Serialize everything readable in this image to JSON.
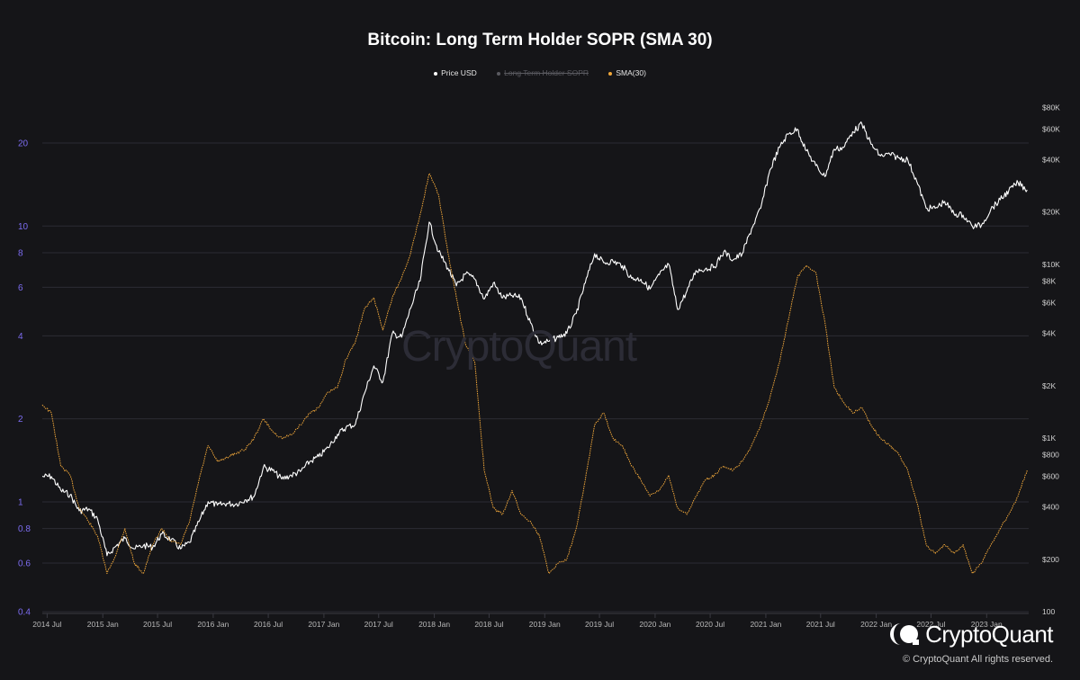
{
  "chart_data": {
    "type": "line",
    "title": "Bitcoin: Long Term Holder SOPR (SMA 30)",
    "legend": [
      {
        "label": "Price USD",
        "color": "#ffffff",
        "visible": true
      },
      {
        "label": "Long Term Holder SOPR",
        "color": "#666666",
        "visible": false
      },
      {
        "label": "SMA(30)",
        "color": "#f0a73a",
        "visible": true
      }
    ],
    "x_axis": {
      "range": [
        "2014-06-15",
        "2023-05-20"
      ],
      "ticks": [
        "2014 Jul",
        "2015 Jan",
        "2015 Jul",
        "2016 Jan",
        "2016 Jul",
        "2017 Jan",
        "2017 Jul",
        "2018 Jan",
        "2018 Jul",
        "2019 Jan",
        "2019 Jul",
        "2020 Jan",
        "2020 Jul",
        "2021 Jan",
        "2021 Jul",
        "2022 Jan",
        "2022 Jul",
        "2023 Jan"
      ]
    },
    "y_left": {
      "scale": "log",
      "range": [
        0.4,
        30
      ],
      "ticks": [
        0.4,
        0.6,
        0.8,
        1,
        2,
        4,
        6,
        8,
        10,
        20
      ],
      "tick_labels": [
        "0.4",
        "0.6",
        "0.8",
        "1",
        "2",
        "4",
        "6",
        "8",
        "10",
        "20"
      ],
      "color": "#7c6cf0"
    },
    "y_right": {
      "scale": "log",
      "range": [
        100,
        95000
      ],
      "ticks": [
        100,
        200,
        400,
        600,
        800,
        1000,
        2000,
        4000,
        6000,
        8000,
        10000,
        20000,
        40000,
        60000,
        80000
      ],
      "tick_labels": [
        "100",
        "$200",
        "$400",
        "$600",
        "$800",
        "$1K",
        "$2K",
        "$4K",
        "$6K",
        "$8K",
        "$10K",
        "$20K",
        "$40K",
        "$60K",
        "$80K"
      ]
    },
    "series": [
      {
        "name": "Price USD",
        "axis": "right",
        "color": "#ffffff",
        "points": [
          [
            "2014-06-15",
            600
          ],
          [
            "2014-07-15",
            600
          ],
          [
            "2014-08-15",
            500
          ],
          [
            "2014-09-15",
            470
          ],
          [
            "2014-10-15",
            380
          ],
          [
            "2014-11-15",
            390
          ],
          [
            "2014-12-15",
            340
          ],
          [
            "2015-01-15",
            210
          ],
          [
            "2015-02-15",
            240
          ],
          [
            "2015-03-15",
            265
          ],
          [
            "2015-04-15",
            230
          ],
          [
            "2015-05-15",
            240
          ],
          [
            "2015-06-15",
            235
          ],
          [
            "2015-07-15",
            280
          ],
          [
            "2015-08-15",
            260
          ],
          [
            "2015-09-15",
            230
          ],
          [
            "2015-10-15",
            250
          ],
          [
            "2015-11-15",
            330
          ],
          [
            "2015-12-15",
            430
          ],
          [
            "2016-01-15",
            410
          ],
          [
            "2016-02-15",
            420
          ],
          [
            "2016-03-15",
            415
          ],
          [
            "2016-04-15",
            440
          ],
          [
            "2016-05-15",
            460
          ],
          [
            "2016-06-15",
            680
          ],
          [
            "2016-07-15",
            650
          ],
          [
            "2016-08-15",
            580
          ],
          [
            "2016-09-15",
            610
          ],
          [
            "2016-10-15",
            640
          ],
          [
            "2016-11-15",
            730
          ],
          [
            "2016-12-15",
            780
          ],
          [
            "2017-01-15",
            880
          ],
          [
            "2017-02-15",
            1050
          ],
          [
            "2017-03-15",
            1150
          ],
          [
            "2017-04-15",
            1200
          ],
          [
            "2017-05-15",
            1800
          ],
          [
            "2017-06-15",
            2600
          ],
          [
            "2017-07-15",
            2100
          ],
          [
            "2017-08-15",
            4000
          ],
          [
            "2017-09-15",
            3800
          ],
          [
            "2017-10-15",
            5600
          ],
          [
            "2017-11-15",
            8000
          ],
          [
            "2017-12-15",
            17500
          ],
          [
            "2018-01-15",
            11800
          ],
          [
            "2018-02-15",
            9500
          ],
          [
            "2018-03-15",
            7500
          ],
          [
            "2018-04-15",
            8800
          ],
          [
            "2018-05-15",
            8200
          ],
          [
            "2018-06-15",
            6300
          ],
          [
            "2018-07-15",
            7800
          ],
          [
            "2018-08-15",
            6400
          ],
          [
            "2018-09-15",
            6600
          ],
          [
            "2018-10-15",
            6400
          ],
          [
            "2018-11-15",
            4600
          ],
          [
            "2018-12-15",
            3500
          ],
          [
            "2019-01-15",
            3600
          ],
          [
            "2019-02-15",
            3800
          ],
          [
            "2019-03-15",
            4000
          ],
          [
            "2019-04-15",
            5200
          ],
          [
            "2019-05-15",
            7800
          ],
          [
            "2019-06-15",
            11500
          ],
          [
            "2019-07-15",
            10200
          ],
          [
            "2019-08-15",
            10400
          ],
          [
            "2019-09-15",
            9800
          ],
          [
            "2019-10-15",
            8300
          ],
          [
            "2019-11-15",
            8200
          ],
          [
            "2019-12-15",
            7200
          ],
          [
            "2020-01-15",
            8700
          ],
          [
            "2020-02-15",
            10000
          ],
          [
            "2020-03-15",
            5500
          ],
          [
            "2020-04-15",
            7000
          ],
          [
            "2020-05-15",
            9200
          ],
          [
            "2020-06-15",
            9400
          ],
          [
            "2020-07-15",
            9700
          ],
          [
            "2020-08-15",
            11800
          ],
          [
            "2020-09-15",
            10600
          ],
          [
            "2020-10-15",
            11500
          ],
          [
            "2020-11-15",
            16000
          ],
          [
            "2020-12-15",
            21000
          ],
          [
            "2021-01-15",
            35000
          ],
          [
            "2021-02-15",
            47000
          ],
          [
            "2021-03-15",
            56000
          ],
          [
            "2021-04-15",
            60000
          ],
          [
            "2021-05-15",
            45000
          ],
          [
            "2021-06-15",
            37000
          ],
          [
            "2021-07-15",
            32000
          ],
          [
            "2021-08-15",
            46000
          ],
          [
            "2021-09-15",
            47000
          ],
          [
            "2021-10-15",
            58000
          ],
          [
            "2021-11-15",
            64000
          ],
          [
            "2021-12-15",
            49000
          ],
          [
            "2022-01-15",
            42000
          ],
          [
            "2022-02-15",
            43000
          ],
          [
            "2022-03-15",
            41000
          ],
          [
            "2022-04-15",
            40000
          ],
          [
            "2022-05-15",
            30000
          ],
          [
            "2022-06-15",
            21000
          ],
          [
            "2022-07-15",
            21000
          ],
          [
            "2022-08-15",
            23000
          ],
          [
            "2022-09-15",
            19500
          ],
          [
            "2022-10-15",
            19200
          ],
          [
            "2022-11-15",
            16500
          ],
          [
            "2022-12-15",
            16800
          ],
          [
            "2023-01-15",
            20800
          ],
          [
            "2023-02-15",
            23500
          ],
          [
            "2023-03-15",
            26500
          ],
          [
            "2023-04-15",
            29500
          ],
          [
            "2023-05-15",
            26800
          ]
        ]
      },
      {
        "name": "SMA(30)",
        "axis": "left",
        "color": "#f0a73a",
        "points": [
          [
            "2014-06-15",
            2.25
          ],
          [
            "2014-07-15",
            2.1
          ],
          [
            "2014-08-15",
            1.35
          ],
          [
            "2014-09-15",
            1.25
          ],
          [
            "2014-10-15",
            0.95
          ],
          [
            "2014-11-15",
            0.85
          ],
          [
            "2014-12-15",
            0.75
          ],
          [
            "2015-01-15",
            0.55
          ],
          [
            "2015-02-15",
            0.65
          ],
          [
            "2015-03-15",
            0.8
          ],
          [
            "2015-04-15",
            0.6
          ],
          [
            "2015-05-15",
            0.55
          ],
          [
            "2015-06-15",
            0.7
          ],
          [
            "2015-07-15",
            0.8
          ],
          [
            "2015-08-15",
            0.72
          ],
          [
            "2015-09-15",
            0.7
          ],
          [
            "2015-10-15",
            0.85
          ],
          [
            "2015-11-15",
            1.2
          ],
          [
            "2015-12-15",
            1.6
          ],
          [
            "2016-01-15",
            1.4
          ],
          [
            "2016-02-15",
            1.45
          ],
          [
            "2016-03-15",
            1.5
          ],
          [
            "2016-04-15",
            1.55
          ],
          [
            "2016-05-15",
            1.7
          ],
          [
            "2016-06-15",
            2.0
          ],
          [
            "2016-07-15",
            1.8
          ],
          [
            "2016-08-15",
            1.7
          ],
          [
            "2016-09-15",
            1.75
          ],
          [
            "2016-10-15",
            1.9
          ],
          [
            "2016-11-15",
            2.1
          ],
          [
            "2016-12-15",
            2.2
          ],
          [
            "2017-01-15",
            2.5
          ],
          [
            "2017-02-15",
            2.6
          ],
          [
            "2017-03-15",
            3.3
          ],
          [
            "2017-04-15",
            3.8
          ],
          [
            "2017-05-15",
            5.0
          ],
          [
            "2017-06-15",
            5.5
          ],
          [
            "2017-07-15",
            4.2
          ],
          [
            "2017-08-15",
            5.5
          ],
          [
            "2017-09-15",
            6.5
          ],
          [
            "2017-10-15",
            8.0
          ],
          [
            "2017-11-15",
            11.0
          ],
          [
            "2017-12-15",
            15.5
          ],
          [
            "2018-01-15",
            13.0
          ],
          [
            "2018-02-15",
            8.0
          ],
          [
            "2018-03-15",
            5.5
          ],
          [
            "2018-04-15",
            3.7
          ],
          [
            "2018-05-15",
            3.2
          ],
          [
            "2018-06-15",
            1.3
          ],
          [
            "2018-07-15",
            0.95
          ],
          [
            "2018-08-15",
            0.9
          ],
          [
            "2018-09-15",
            1.1
          ],
          [
            "2018-10-15",
            0.9
          ],
          [
            "2018-11-15",
            0.85
          ],
          [
            "2018-12-15",
            0.75
          ],
          [
            "2019-01-15",
            0.55
          ],
          [
            "2019-02-15",
            0.6
          ],
          [
            "2019-03-15",
            0.62
          ],
          [
            "2019-04-15",
            0.8
          ],
          [
            "2019-05-15",
            1.2
          ],
          [
            "2019-06-15",
            1.9
          ],
          [
            "2019-07-15",
            2.1
          ],
          [
            "2019-08-15",
            1.7
          ],
          [
            "2019-09-15",
            1.6
          ],
          [
            "2019-10-15",
            1.35
          ],
          [
            "2019-11-15",
            1.2
          ],
          [
            "2019-12-15",
            1.05
          ],
          [
            "2020-01-15",
            1.1
          ],
          [
            "2020-02-15",
            1.25
          ],
          [
            "2020-03-15",
            0.95
          ],
          [
            "2020-04-15",
            0.9
          ],
          [
            "2020-05-15",
            1.05
          ],
          [
            "2020-06-15",
            1.2
          ],
          [
            "2020-07-15",
            1.25
          ],
          [
            "2020-08-15",
            1.35
          ],
          [
            "2020-09-15",
            1.3
          ],
          [
            "2020-10-15",
            1.4
          ],
          [
            "2020-11-15",
            1.6
          ],
          [
            "2020-12-15",
            1.9
          ],
          [
            "2021-01-15",
            2.4
          ],
          [
            "2021-02-15",
            3.2
          ],
          [
            "2021-03-15",
            4.5
          ],
          [
            "2021-04-15",
            6.5
          ],
          [
            "2021-05-15",
            7.2
          ],
          [
            "2021-06-15",
            6.8
          ],
          [
            "2021-07-15",
            4.5
          ],
          [
            "2021-08-15",
            2.6
          ],
          [
            "2021-09-15",
            2.3
          ],
          [
            "2021-10-15",
            2.1
          ],
          [
            "2021-11-15",
            2.2
          ],
          [
            "2021-12-15",
            1.9
          ],
          [
            "2022-01-15",
            1.7
          ],
          [
            "2022-02-15",
            1.6
          ],
          [
            "2022-03-15",
            1.5
          ],
          [
            "2022-04-15",
            1.3
          ],
          [
            "2022-05-15",
            1.0
          ],
          [
            "2022-06-15",
            0.7
          ],
          [
            "2022-07-15",
            0.65
          ],
          [
            "2022-08-15",
            0.7
          ],
          [
            "2022-09-15",
            0.65
          ],
          [
            "2022-10-15",
            0.7
          ],
          [
            "2022-11-15",
            0.55
          ],
          [
            "2022-12-15",
            0.6
          ],
          [
            "2023-01-15",
            0.7
          ],
          [
            "2023-02-15",
            0.8
          ],
          [
            "2023-03-15",
            0.9
          ],
          [
            "2023-04-15",
            1.05
          ],
          [
            "2023-05-15",
            1.3
          ]
        ]
      }
    ]
  },
  "branding": {
    "watermark": "CryptoQuant",
    "brand_name": "CryptoQuant",
    "copyright": "© CryptoQuant All rights reserved."
  }
}
